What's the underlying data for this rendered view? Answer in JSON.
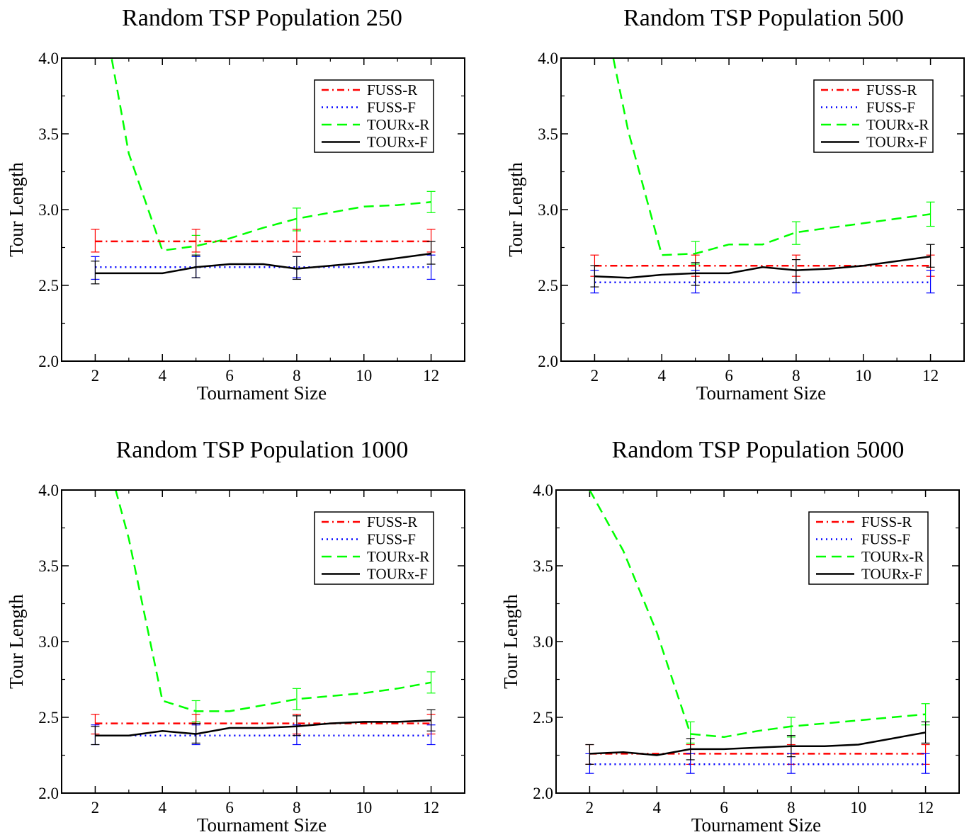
{
  "chart_data": [
    {
      "type": "line",
      "title": "Random TSP  Population 250",
      "xlabel": "Tournament Size",
      "ylabel": "Tour Length",
      "xlim": [
        1,
        13
      ],
      "ylim": [
        2.0,
        4.0
      ],
      "xticks": [
        "2",
        "4",
        "6",
        "8",
        "10",
        "12"
      ],
      "yticks": [
        "2.0",
        "2.5",
        "3.0",
        "3.5",
        "4.0"
      ],
      "legend_position": "top-right",
      "series": [
        {
          "name": "FUSS-R",
          "color": "#ff0000",
          "style": "dashdot",
          "x": [
            2,
            12
          ],
          "y": [
            2.79,
            2.79
          ],
          "errors": [
            {
              "x": 2,
              "lo": 2.72,
              "hi": 2.87
            },
            {
              "x": 5,
              "lo": 2.72,
              "hi": 2.87
            },
            {
              "x": 8,
              "lo": 2.72,
              "hi": 2.87
            },
            {
              "x": 12,
              "lo": 2.72,
              "hi": 2.87
            }
          ]
        },
        {
          "name": "FUSS-F",
          "color": "#0000ff",
          "style": "dotted",
          "x": [
            2,
            12
          ],
          "y": [
            2.62,
            2.62
          ],
          "errors": [
            {
              "x": 2,
              "lo": 2.54,
              "hi": 2.69
            },
            {
              "x": 5,
              "lo": 2.55,
              "hi": 2.69
            },
            {
              "x": 8,
              "lo": 2.55,
              "hi": 2.69
            },
            {
              "x": 12,
              "lo": 2.54,
              "hi": 2.7
            }
          ]
        },
        {
          "name": "TOURx-R",
          "color": "#00ff00",
          "style": "dashed",
          "x": [
            2,
            3,
            4,
            5,
            6,
            7,
            8,
            9,
            10,
            11,
            12
          ],
          "y": [
            4.6,
            3.37,
            2.73,
            2.76,
            2.81,
            2.88,
            2.94,
            2.98,
            3.02,
            3.03,
            3.05
          ],
          "errors": [
            {
              "x": 5,
              "lo": 2.69,
              "hi": 2.83
            },
            {
              "x": 8,
              "lo": 2.86,
              "hi": 3.01
            },
            {
              "x": 12,
              "lo": 2.98,
              "hi": 3.12
            }
          ]
        },
        {
          "name": "TOURx-F",
          "color": "#000000",
          "style": "solid",
          "x": [
            2,
            3,
            4,
            5,
            6,
            7,
            8,
            9,
            10,
            11,
            12
          ],
          "y": [
            2.58,
            2.58,
            2.58,
            2.62,
            2.64,
            2.64,
            2.61,
            2.63,
            2.65,
            2.68,
            2.71
          ],
          "errors": [
            {
              "x": 2,
              "lo": 2.51,
              "hi": 2.66
            },
            {
              "x": 5,
              "lo": 2.55,
              "hi": 2.7
            },
            {
              "x": 8,
              "lo": 2.54,
              "hi": 2.69
            },
            {
              "x": 12,
              "lo": 2.64,
              "hi": 2.79
            }
          ]
        }
      ]
    },
    {
      "type": "line",
      "title": "Random TSP  Population 500",
      "xlabel": "Tournament Size",
      "ylabel": "Tour Length",
      "xlim": [
        1,
        13
      ],
      "ylim": [
        2.0,
        4.0
      ],
      "xticks": [
        "2",
        "4",
        "6",
        "8",
        "10",
        "12"
      ],
      "yticks": [
        "2.0",
        "2.5",
        "3.0",
        "3.5",
        "4.0"
      ],
      "legend_position": "top-right",
      "series": [
        {
          "name": "FUSS-R",
          "color": "#ff0000",
          "style": "dashdot",
          "x": [
            2,
            12
          ],
          "y": [
            2.63,
            2.63
          ],
          "errors": [
            {
              "x": 2,
              "lo": 2.56,
              "hi": 2.7
            },
            {
              "x": 5,
              "lo": 2.56,
              "hi": 2.7
            },
            {
              "x": 8,
              "lo": 2.56,
              "hi": 2.7
            },
            {
              "x": 12,
              "lo": 2.56,
              "hi": 2.7
            }
          ]
        },
        {
          "name": "FUSS-F",
          "color": "#0000ff",
          "style": "dotted",
          "x": [
            2,
            12
          ],
          "y": [
            2.52,
            2.52
          ],
          "errors": [
            {
              "x": 2,
              "lo": 2.45,
              "hi": 2.6
            },
            {
              "x": 5,
              "lo": 2.45,
              "hi": 2.6
            },
            {
              "x": 8,
              "lo": 2.45,
              "hi": 2.6
            },
            {
              "x": 12,
              "lo": 2.45,
              "hi": 2.6
            }
          ]
        },
        {
          "name": "TOURx-R",
          "color": "#00ff00",
          "style": "dashed",
          "x": [
            2,
            3,
            4,
            5,
            6,
            7,
            8,
            9,
            10,
            11,
            12
          ],
          "y": [
            4.6,
            3.52,
            2.7,
            2.71,
            2.77,
            2.77,
            2.85,
            2.88,
            2.91,
            2.94,
            2.97
          ],
          "errors": [
            {
              "x": 5,
              "lo": 2.64,
              "hi": 2.79
            },
            {
              "x": 8,
              "lo": 2.77,
              "hi": 2.92
            },
            {
              "x": 12,
              "lo": 2.89,
              "hi": 3.05
            }
          ]
        },
        {
          "name": "TOURx-F",
          "color": "#000000",
          "style": "solid",
          "x": [
            2,
            3,
            4,
            5,
            6,
            7,
            8,
            9,
            10,
            11,
            12
          ],
          "y": [
            2.56,
            2.55,
            2.57,
            2.58,
            2.58,
            2.62,
            2.6,
            2.61,
            2.63,
            2.66,
            2.69
          ],
          "errors": [
            {
              "x": 2,
              "lo": 2.49,
              "hi": 2.63
            },
            {
              "x": 5,
              "lo": 2.5,
              "hi": 2.65
            },
            {
              "x": 8,
              "lo": 2.52,
              "hi": 2.67
            },
            {
              "x": 12,
              "lo": 2.62,
              "hi": 2.77
            }
          ]
        }
      ]
    },
    {
      "type": "line",
      "title": "Random TSP  Population 1000",
      "xlabel": "Tournament Size",
      "ylabel": "Tour Length",
      "xlim": [
        1,
        13
      ],
      "ylim": [
        2.0,
        4.0
      ],
      "xticks": [
        "2",
        "4",
        "6",
        "8",
        "10",
        "12"
      ],
      "yticks": [
        "2.0",
        "2.5",
        "3.0",
        "3.5",
        "4.0"
      ],
      "legend_position": "top-right",
      "series": [
        {
          "name": "FUSS-R",
          "color": "#ff0000",
          "style": "dashdot",
          "x": [
            2,
            12
          ],
          "y": [
            2.46,
            2.46
          ],
          "errors": [
            {
              "x": 2,
              "lo": 2.39,
              "hi": 2.52
            },
            {
              "x": 5,
              "lo": 2.39,
              "hi": 2.52
            },
            {
              "x": 8,
              "lo": 2.39,
              "hi": 2.52
            },
            {
              "x": 12,
              "lo": 2.39,
              "hi": 2.52
            }
          ]
        },
        {
          "name": "FUSS-F",
          "color": "#0000ff",
          "style": "dotted",
          "x": [
            2,
            12
          ],
          "y": [
            2.38,
            2.38
          ],
          "errors": [
            {
              "x": 2,
              "lo": 2.32,
              "hi": 2.45
            },
            {
              "x": 5,
              "lo": 2.32,
              "hi": 2.45
            },
            {
              "x": 8,
              "lo": 2.32,
              "hi": 2.45
            },
            {
              "x": 12,
              "lo": 2.32,
              "hi": 2.45
            }
          ]
        },
        {
          "name": "TOURx-R",
          "color": "#00ff00",
          "style": "dashed",
          "x": [
            2,
            3,
            4,
            5,
            6,
            7,
            8,
            9,
            10,
            11,
            12
          ],
          "y": [
            4.5,
            3.68,
            2.61,
            2.54,
            2.54,
            2.58,
            2.62,
            2.64,
            2.66,
            2.69,
            2.73
          ],
          "errors": [
            {
              "x": 5,
              "lo": 2.47,
              "hi": 2.61
            },
            {
              "x": 8,
              "lo": 2.55,
              "hi": 2.69
            },
            {
              "x": 12,
              "lo": 2.66,
              "hi": 2.8
            }
          ]
        },
        {
          "name": "TOURx-F",
          "color": "#000000",
          "style": "solid",
          "x": [
            2,
            3,
            4,
            5,
            6,
            7,
            8,
            9,
            10,
            11,
            12
          ],
          "y": [
            2.38,
            2.38,
            2.41,
            2.39,
            2.43,
            2.43,
            2.44,
            2.46,
            2.47,
            2.47,
            2.48
          ],
          "errors": [
            {
              "x": 2,
              "lo": 2.32,
              "hi": 2.44
            },
            {
              "x": 5,
              "lo": 2.33,
              "hi": 2.46
            },
            {
              "x": 8,
              "lo": 2.38,
              "hi": 2.51
            },
            {
              "x": 12,
              "lo": 2.41,
              "hi": 2.55
            }
          ]
        }
      ]
    },
    {
      "type": "line",
      "title": "Random TSP  Population 5000",
      "xlabel": "Tournament Size",
      "ylabel": "Tour Length",
      "xlim": [
        1,
        13
      ],
      "ylim": [
        2.0,
        4.0
      ],
      "xticks": [
        "2",
        "4",
        "6",
        "8",
        "10",
        "12"
      ],
      "yticks": [
        "2.0",
        "2.5",
        "3.0",
        "3.5",
        "4.0"
      ],
      "legend_position": "top-right",
      "series": [
        {
          "name": "FUSS-R",
          "color": "#ff0000",
          "style": "dashdot",
          "x": [
            2,
            12
          ],
          "y": [
            2.26,
            2.26
          ],
          "errors": [
            {
              "x": 2,
              "lo": 2.19,
              "hi": 2.32
            },
            {
              "x": 5,
              "lo": 2.19,
              "hi": 2.32
            },
            {
              "x": 8,
              "lo": 2.19,
              "hi": 2.32
            },
            {
              "x": 12,
              "lo": 2.19,
              "hi": 2.32
            }
          ]
        },
        {
          "name": "FUSS-F",
          "color": "#0000ff",
          "style": "dotted",
          "x": [
            2,
            12
          ],
          "y": [
            2.19,
            2.19
          ],
          "errors": [
            {
              "x": 2,
              "lo": 2.13,
              "hi": 2.26
            },
            {
              "x": 5,
              "lo": 2.13,
              "hi": 2.26
            },
            {
              "x": 8,
              "lo": 2.13,
              "hi": 2.26
            },
            {
              "x": 12,
              "lo": 2.13,
              "hi": 2.26
            }
          ]
        },
        {
          "name": "TOURx-R",
          "color": "#00ff00",
          "style": "dashed",
          "x": [
            2,
            3,
            4,
            5,
            6,
            7,
            8,
            9,
            10,
            11,
            12
          ],
          "y": [
            4.0,
            3.6,
            3.06,
            2.39,
            2.37,
            2.41,
            2.44,
            2.46,
            2.48,
            2.5,
            2.52
          ],
          "errors": [
            {
              "x": 5,
              "lo": 2.33,
              "hi": 2.47
            },
            {
              "x": 8,
              "lo": 2.37,
              "hi": 2.5
            },
            {
              "x": 12,
              "lo": 2.45,
              "hi": 2.59
            }
          ]
        },
        {
          "name": "TOURx-F",
          "color": "#000000",
          "style": "solid",
          "x": [
            2,
            3,
            4,
            5,
            6,
            7,
            8,
            9,
            10,
            11,
            12
          ],
          "y": [
            2.26,
            2.27,
            2.25,
            2.29,
            2.29,
            2.3,
            2.31,
            2.31,
            2.32,
            2.36,
            2.4
          ],
          "errors": [
            {
              "x": 2,
              "lo": 2.19,
              "hi": 2.32
            },
            {
              "x": 5,
              "lo": 2.22,
              "hi": 2.36
            },
            {
              "x": 8,
              "lo": 2.24,
              "hi": 2.38
            },
            {
              "x": 12,
              "lo": 2.33,
              "hi": 2.47
            }
          ]
        }
      ]
    }
  ]
}
